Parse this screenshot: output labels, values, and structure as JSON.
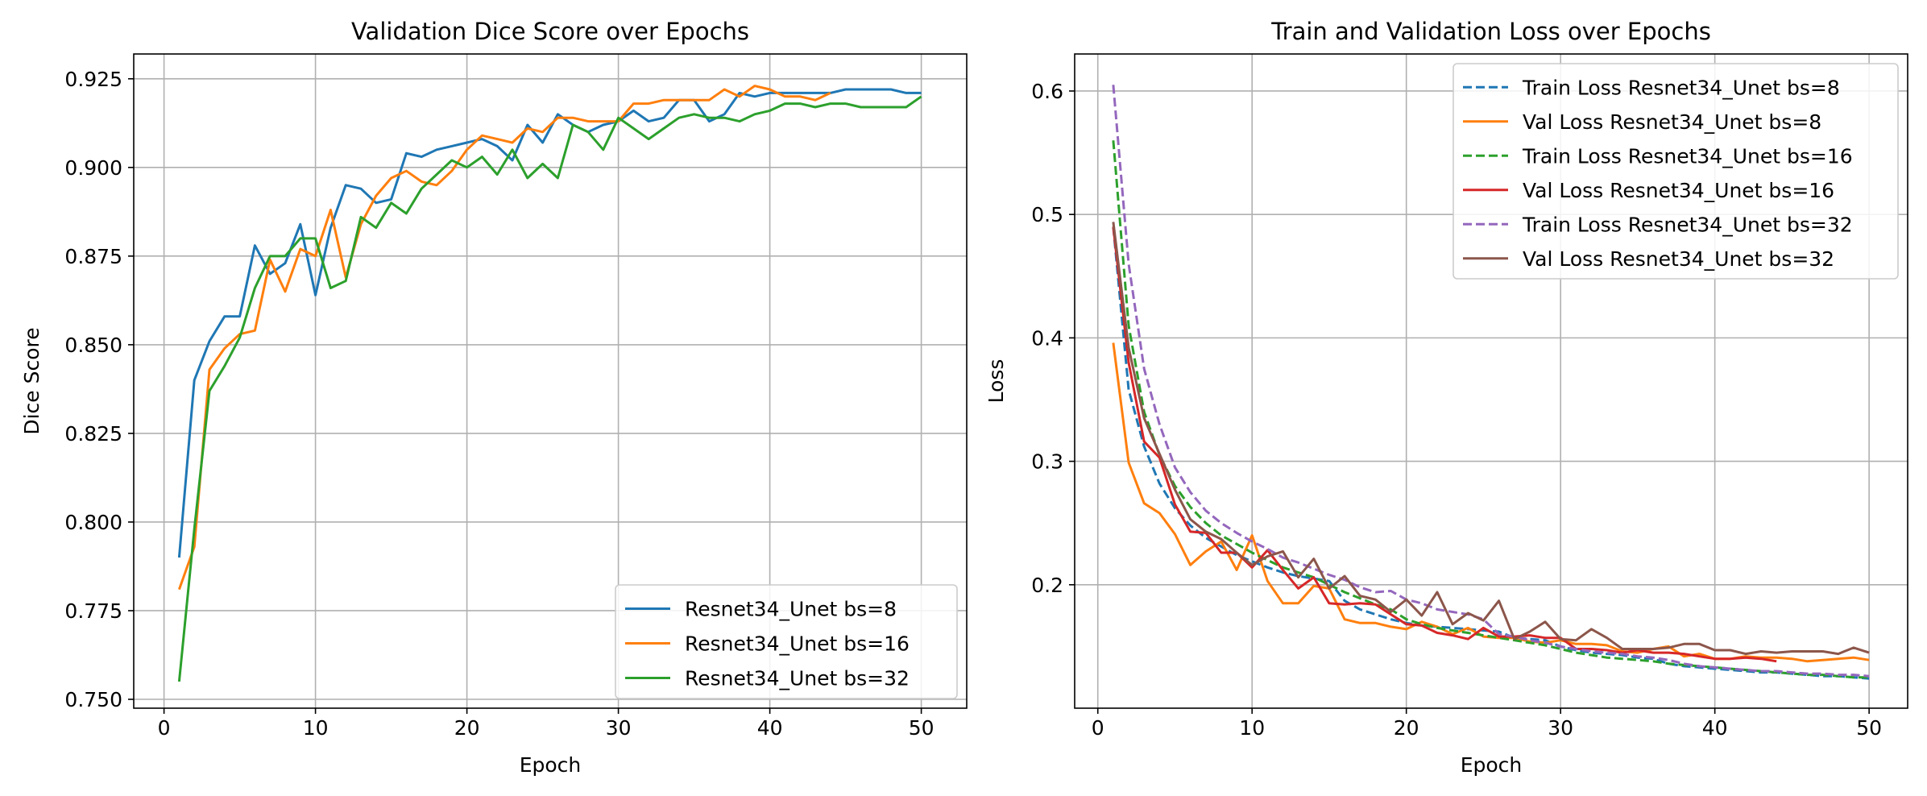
{
  "chart_data": [
    {
      "type": "line",
      "title": "Validation Dice Score over Epochs",
      "xlabel": "Epoch",
      "ylabel": "Dice Score",
      "xlim": [
        -2,
        53
      ],
      "ylim": [
        0.7475,
        0.932
      ],
      "xticks": [
        0,
        10,
        20,
        30,
        40,
        50
      ],
      "yticks": [
        0.75,
        0.775,
        0.8,
        0.825,
        0.85,
        0.875,
        0.9,
        0.925
      ],
      "ytick_labels": [
        "0.750",
        "0.775",
        "0.800",
        "0.825",
        "0.850",
        "0.875",
        "0.900",
        "0.925"
      ],
      "grid": true,
      "legend_position": "lower-right",
      "series": [
        {
          "name": "Resnet34_Unet bs=8",
          "color": "#1f77b4",
          "dash": "solid",
          "x": [
            1,
            2,
            3,
            4,
            5,
            6,
            7,
            8,
            9,
            10,
            11,
            12,
            13,
            14,
            15,
            16,
            17,
            18,
            19,
            20,
            21,
            22,
            23,
            24,
            25,
            26,
            27,
            28,
            29,
            30,
            31,
            32,
            33,
            34,
            35,
            36,
            37,
            38,
            39,
            40,
            41,
            42,
            43,
            44,
            45,
            46,
            47,
            48,
            49,
            50
          ],
          "y": [
            0.79,
            0.84,
            0.851,
            0.858,
            0.858,
            0.878,
            0.87,
            0.873,
            0.884,
            0.864,
            0.883,
            0.895,
            0.894,
            0.89,
            0.891,
            0.904,
            0.903,
            0.905,
            0.906,
            0.907,
            0.908,
            0.906,
            0.902,
            0.912,
            0.907,
            0.915,
            0.912,
            0.91,
            0.912,
            0.913,
            0.916,
            0.913,
            0.914,
            0.919,
            0.919,
            0.913,
            0.915,
            0.921,
            0.92,
            0.921,
            0.921,
            0.921,
            0.921,
            0.921,
            0.922,
            0.922,
            0.922,
            0.922,
            0.921,
            0.921
          ]
        },
        {
          "name": "Resnet34_Unet bs=16",
          "color": "#ff7f0e",
          "dash": "solid",
          "x": [
            1,
            2,
            3,
            4,
            5,
            6,
            7,
            8,
            9,
            10,
            11,
            12,
            13,
            14,
            15,
            16,
            17,
            18,
            19,
            20,
            21,
            22,
            23,
            24,
            25,
            26,
            27,
            28,
            29,
            30,
            31,
            32,
            33,
            34,
            35,
            36,
            37,
            38,
            39,
            40,
            41,
            42,
            43,
            44
          ],
          "y": [
            0.781,
            0.793,
            0.843,
            0.849,
            0.853,
            0.854,
            0.874,
            0.865,
            0.877,
            0.875,
            0.888,
            0.869,
            0.884,
            0.892,
            0.897,
            0.899,
            0.896,
            0.895,
            0.899,
            0.905,
            0.909,
            0.908,
            0.907,
            0.911,
            0.91,
            0.914,
            0.914,
            0.913,
            0.913,
            0.913,
            0.918,
            0.918,
            0.919,
            0.919,
            0.919,
            0.919,
            0.922,
            0.92,
            0.923,
            0.922,
            0.92,
            0.92,
            0.919,
            0.921
          ]
        },
        {
          "name": "Resnet34_Unet bs=32",
          "color": "#2ca02c",
          "dash": "solid",
          "x": [
            1,
            2,
            3,
            4,
            5,
            6,
            7,
            8,
            9,
            10,
            11,
            12,
            13,
            14,
            15,
            16,
            17,
            18,
            19,
            20,
            21,
            22,
            23,
            24,
            25,
            26,
            27,
            28,
            29,
            30,
            31,
            32,
            33,
            34,
            35,
            36,
            37,
            38,
            39,
            40,
            41,
            42,
            43,
            44,
            45,
            46,
            47,
            48,
            49,
            50
          ],
          "y": [
            0.755,
            0.798,
            0.837,
            0.844,
            0.852,
            0.866,
            0.875,
            0.875,
            0.88,
            0.88,
            0.866,
            0.868,
            0.886,
            0.883,
            0.89,
            0.887,
            0.894,
            0.898,
            0.902,
            0.9,
            0.903,
            0.898,
            0.905,
            0.897,
            0.901,
            0.897,
            0.912,
            0.91,
            0.905,
            0.914,
            0.911,
            0.908,
            0.911,
            0.914,
            0.915,
            0.914,
            0.914,
            0.913,
            0.915,
            0.916,
            0.918,
            0.918,
            0.917,
            0.918,
            0.918,
            0.917,
            0.917,
            0.917,
            0.917,
            0.92
          ]
        }
      ]
    },
    {
      "type": "line",
      "title": "Train and Validation Loss over Epochs",
      "xlabel": "Epoch",
      "ylabel": "Loss",
      "xlim": [
        -1.5,
        52.5
      ],
      "ylim": [
        0.1,
        0.63
      ],
      "xticks": [
        0,
        10,
        20,
        30,
        40,
        50
      ],
      "yticks": [
        0.2,
        0.3,
        0.4,
        0.5,
        0.6
      ],
      "ytick_labels": [
        "0.2",
        "0.3",
        "0.4",
        "0.5",
        "0.6"
      ],
      "grid": true,
      "legend_position": "upper-right",
      "series": [
        {
          "name": "Train Loss Resnet34_Unet bs=8",
          "color": "#1f77b4",
          "dash": "dashed",
          "x": [
            1,
            2,
            3,
            4,
            5,
            6,
            7,
            8,
            9,
            10,
            11,
            12,
            13,
            14,
            15,
            16,
            17,
            18,
            19,
            20,
            21,
            22,
            23,
            24,
            25,
            26,
            27,
            28,
            29,
            30,
            31,
            32,
            33,
            34,
            35,
            36,
            37,
            38,
            39,
            40,
            41,
            42,
            43,
            44,
            45,
            46,
            47,
            48,
            49,
            50
          ],
          "y": [
            0.49,
            0.358,
            0.312,
            0.282,
            0.262,
            0.248,
            0.238,
            0.231,
            0.224,
            0.219,
            0.214,
            0.21,
            0.207,
            0.205,
            0.203,
            0.187,
            0.18,
            0.176,
            0.172,
            0.169,
            0.167,
            0.166,
            0.165,
            0.164,
            0.163,
            0.162,
            0.157,
            0.156,
            0.155,
            0.15,
            0.147,
            0.145,
            0.144,
            0.143,
            0.141,
            0.14,
            0.136,
            0.134,
            0.133,
            0.132,
            0.131,
            0.13,
            0.129,
            0.129,
            0.128,
            0.127,
            0.126,
            0.126,
            0.125,
            0.124
          ]
        },
        {
          "name": "Val Loss Resnet34_Unet bs=8",
          "color": "#ff7f0e",
          "dash": "solid",
          "x": [
            1,
            2,
            3,
            4,
            5,
            6,
            7,
            8,
            9,
            10,
            11,
            12,
            13,
            14,
            15,
            16,
            17,
            18,
            19,
            20,
            21,
            22,
            23,
            24,
            25,
            26,
            27,
            28,
            29,
            30,
            31,
            32,
            33,
            34,
            35,
            36,
            37,
            38,
            39,
            40,
            41,
            42,
            43,
            44,
            45,
            46,
            47,
            48,
            49,
            50
          ],
          "y": [
            0.396,
            0.299,
            0.266,
            0.258,
            0.241,
            0.216,
            0.227,
            0.235,
            0.212,
            0.24,
            0.203,
            0.185,
            0.185,
            0.199,
            0.197,
            0.172,
            0.169,
            0.169,
            0.166,
            0.164,
            0.17,
            0.166,
            0.16,
            0.165,
            0.158,
            0.157,
            0.157,
            0.154,
            0.153,
            0.155,
            0.152,
            0.152,
            0.151,
            0.146,
            0.145,
            0.148,
            0.15,
            0.142,
            0.144,
            0.14,
            0.14,
            0.142,
            0.141,
            0.141,
            0.14,
            0.138,
            0.139,
            0.14,
            0.141,
            0.139
          ]
        },
        {
          "name": "Train Loss Resnet34_Unet bs=16",
          "color": "#2ca02c",
          "dash": "dashed",
          "x": [
            1,
            2,
            3,
            4,
            5,
            6,
            7,
            8,
            9,
            10,
            11,
            12,
            13,
            14,
            15,
            16,
            17,
            18,
            19,
            20,
            21,
            22,
            23,
            24,
            25,
            26,
            27,
            28,
            29,
            30,
            31,
            32,
            33,
            34,
            35,
            36,
            37,
            38,
            39,
            40,
            41,
            42,
            43,
            44,
            45,
            46,
            47,
            48,
            49,
            50
          ],
          "y": [
            0.56,
            0.41,
            0.34,
            0.305,
            0.28,
            0.263,
            0.25,
            0.24,
            0.233,
            0.226,
            0.22,
            0.214,
            0.21,
            0.206,
            0.2,
            0.194,
            0.189,
            0.184,
            0.18,
            0.172,
            0.168,
            0.165,
            0.163,
            0.161,
            0.159,
            0.157,
            0.155,
            0.153,
            0.151,
            0.148,
            0.145,
            0.143,
            0.141,
            0.14,
            0.139,
            0.138,
            0.136,
            0.135,
            0.134,
            0.133,
            0.132,
            0.131,
            0.13,
            0.129,
            0.128,
            0.127,
            0.127,
            0.126,
            0.125,
            0.125
          ]
        },
        {
          "name": "Val Loss Resnet34_Unet bs=16",
          "color": "#d62728",
          "dash": "solid",
          "x": [
            1,
            2,
            3,
            4,
            5,
            6,
            7,
            8,
            9,
            10,
            11,
            12,
            13,
            14,
            15,
            16,
            17,
            18,
            19,
            20,
            21,
            22,
            23,
            24,
            25,
            26,
            27,
            28,
            29,
            30,
            31,
            32,
            33,
            34,
            35,
            36,
            37,
            38,
            39,
            40,
            41,
            42,
            43,
            44
          ],
          "y": [
            0.49,
            0.38,
            0.316,
            0.303,
            0.265,
            0.243,
            0.242,
            0.226,
            0.226,
            0.214,
            0.228,
            0.212,
            0.197,
            0.206,
            0.185,
            0.184,
            0.185,
            0.184,
            0.176,
            0.168,
            0.167,
            0.161,
            0.159,
            0.156,
            0.165,
            0.158,
            0.158,
            0.159,
            0.157,
            0.157,
            0.148,
            0.148,
            0.147,
            0.145,
            0.147,
            0.145,
            0.145,
            0.144,
            0.142,
            0.14,
            0.14,
            0.141,
            0.14,
            0.138
          ]
        },
        {
          "name": "Train Loss Resnet34_Unet bs=32",
          "color": "#9467bd",
          "dash": "dashed",
          "x": [
            1,
            2,
            3,
            4,
            5,
            6,
            7,
            8,
            9,
            10,
            11,
            12,
            13,
            14,
            15,
            16,
            17,
            18,
            19,
            20,
            21,
            22,
            23,
            24,
            25,
            26,
            27,
            28,
            29,
            30,
            31,
            32,
            33,
            34,
            35,
            36,
            37,
            38,
            39,
            40,
            41,
            42,
            43,
            44,
            45,
            46,
            47,
            48,
            49,
            50
          ],
          "y": [
            0.605,
            0.46,
            0.375,
            0.33,
            0.295,
            0.275,
            0.26,
            0.25,
            0.242,
            0.235,
            0.229,
            0.222,
            0.218,
            0.213,
            0.208,
            0.204,
            0.198,
            0.194,
            0.195,
            0.188,
            0.185,
            0.18,
            0.178,
            0.176,
            0.172,
            0.16,
            0.158,
            0.155,
            0.153,
            0.15,
            0.148,
            0.146,
            0.145,
            0.144,
            0.142,
            0.141,
            0.139,
            0.136,
            0.134,
            0.133,
            0.132,
            0.131,
            0.13,
            0.13,
            0.129,
            0.128,
            0.128,
            0.127,
            0.127,
            0.126
          ]
        },
        {
          "name": "Val Loss Resnet34_Unet bs=32",
          "color": "#8c564b",
          "dash": "solid",
          "x": [
            1,
            2,
            3,
            4,
            5,
            6,
            7,
            8,
            9,
            10,
            11,
            12,
            13,
            14,
            15,
            16,
            17,
            18,
            19,
            20,
            21,
            22,
            23,
            24,
            25,
            26,
            27,
            28,
            29,
            30,
            31,
            32,
            33,
            34,
            35,
            36,
            37,
            38,
            39,
            40,
            41,
            42,
            43,
            44,
            45,
            46,
            47,
            48,
            49,
            50
          ],
          "y": [
            0.494,
            0.392,
            0.335,
            0.306,
            0.277,
            0.253,
            0.243,
            0.237,
            0.226,
            0.216,
            0.223,
            0.227,
            0.206,
            0.221,
            0.197,
            0.207,
            0.191,
            0.188,
            0.178,
            0.188,
            0.175,
            0.194,
            0.168,
            0.177,
            0.171,
            0.187,
            0.156,
            0.162,
            0.17,
            0.156,
            0.155,
            0.164,
            0.157,
            0.148,
            0.148,
            0.148,
            0.149,
            0.152,
            0.152,
            0.147,
            0.147,
            0.144,
            0.146,
            0.145,
            0.146,
            0.146,
            0.146,
            0.144,
            0.149,
            0.145
          ]
        }
      ]
    }
  ]
}
